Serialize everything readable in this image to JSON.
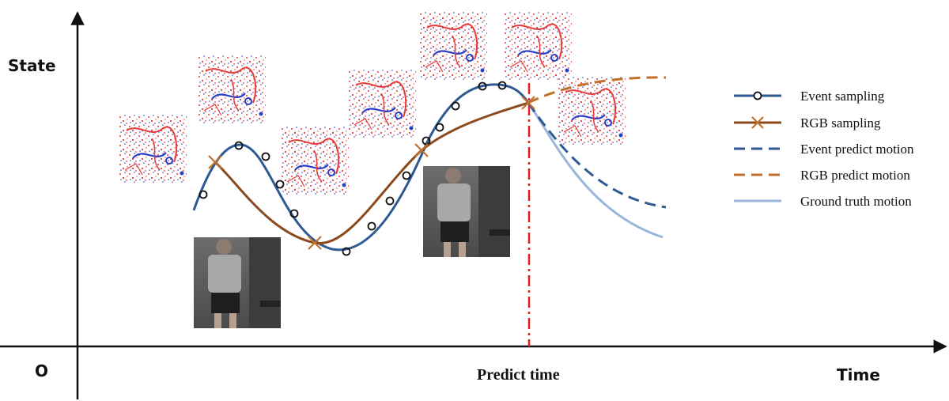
{
  "axes": {
    "y_label": "State",
    "x_label": "Time",
    "origin_label": "O",
    "predict_label": "Predict time"
  },
  "legend": [
    {
      "key": "event_sampling",
      "label": "Event sampling",
      "color": "#2e5a94",
      "style": "solid-circle"
    },
    {
      "key": "rgb_sampling",
      "label": "RGB sampling",
      "color": "#a0501e",
      "style": "solid-x"
    },
    {
      "key": "event_predict",
      "label": "Event predict motion",
      "color": "#2e5a94",
      "style": "dashed"
    },
    {
      "key": "rgb_predict",
      "label": "RGB predict motion",
      "color": "#c0702a",
      "style": "dashed"
    },
    {
      "key": "ground_truth",
      "label": "Ground truth motion",
      "color": "#9bb6dd",
      "style": "solid"
    }
  ],
  "colors": {
    "event": "#2e5a94",
    "rgb": "#a0501e",
    "rgb_predict": "#c0702a",
    "ground_truth": "#9bb6dd",
    "predict_line": "#e02020",
    "event_red": "#e43a3a",
    "event_blue": "#2a3fc8"
  },
  "images": {
    "event_frames": [
      "event-frame",
      "event-frame",
      "event-frame",
      "event-frame",
      "event-frame",
      "event-frame",
      "event-frame"
    ],
    "rgb_frames": [
      "rgb-frame",
      "rgb-frame"
    ]
  }
}
